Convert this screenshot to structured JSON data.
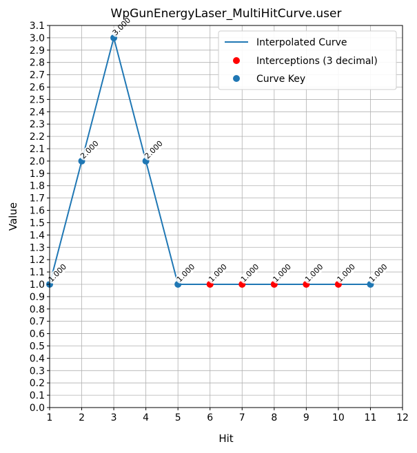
{
  "chart_data": {
    "type": "line",
    "title": "WpGunEnergyLaser_MultiHitCurve.user",
    "xlabel": "Hit",
    "ylabel": "Value",
    "xlim": [
      1,
      12
    ],
    "ylim": [
      0,
      3.1
    ],
    "x_ticks": [
      "1",
      "2",
      "3",
      "4",
      "5",
      "6",
      "7",
      "8",
      "9",
      "10",
      "11",
      "12"
    ],
    "y_ticks": [
      "0.0",
      "0.1",
      "0.2",
      "0.3",
      "0.4",
      "0.5",
      "0.6",
      "0.7",
      "0.8",
      "0.9",
      "1.0",
      "1.1",
      "1.2",
      "1.3",
      "1.4",
      "1.5",
      "1.6",
      "1.7",
      "1.8",
      "1.9",
      "2.0",
      "2.1",
      "2.2",
      "2.3",
      "2.4",
      "2.5",
      "2.6",
      "2.7",
      "2.8",
      "2.9",
      "3.0",
      "3.1"
    ],
    "grid": true,
    "legend_position": "top-right",
    "colors": {
      "curve": "#1f77b4",
      "interceptions": "#ff0000",
      "keys": "#1f77b4"
    },
    "series": [
      {
        "name": "Interpolated Curve",
        "style": "line",
        "x": [
          1,
          2,
          3,
          4,
          5,
          6,
          7,
          8,
          9,
          10,
          11
        ],
        "y": [
          1.0,
          2.0,
          3.0,
          2.0,
          1.0,
          1.0,
          1.0,
          1.0,
          1.0,
          1.0,
          1.0
        ]
      },
      {
        "name": "Interceptions (3 decimal)",
        "style": "scatter",
        "x": [
          6,
          7,
          8,
          9,
          10
        ],
        "y": [
          1.0,
          1.0,
          1.0,
          1.0,
          1.0
        ]
      },
      {
        "name": "Curve Key",
        "style": "scatter",
        "x": [
          1,
          2,
          3,
          4,
          5,
          11
        ],
        "y": [
          1.0,
          2.0,
          3.0,
          2.0,
          1.0,
          1.0
        ]
      }
    ],
    "annotations": [
      {
        "x": 1,
        "y": 1.0,
        "text": "1.000"
      },
      {
        "x": 2,
        "y": 2.0,
        "text": "2.000"
      },
      {
        "x": 3,
        "y": 3.0,
        "text": "3.000"
      },
      {
        "x": 4,
        "y": 2.0,
        "text": "2.000"
      },
      {
        "x": 5,
        "y": 1.0,
        "text": "1.000"
      },
      {
        "x": 6,
        "y": 1.0,
        "text": "1.000"
      },
      {
        "x": 7,
        "y": 1.0,
        "text": "1.000"
      },
      {
        "x": 8,
        "y": 1.0,
        "text": "1.000"
      },
      {
        "x": 9,
        "y": 1.0,
        "text": "1.000"
      },
      {
        "x": 10,
        "y": 1.0,
        "text": "1.000"
      },
      {
        "x": 11,
        "y": 1.0,
        "text": "1.000"
      }
    ]
  }
}
